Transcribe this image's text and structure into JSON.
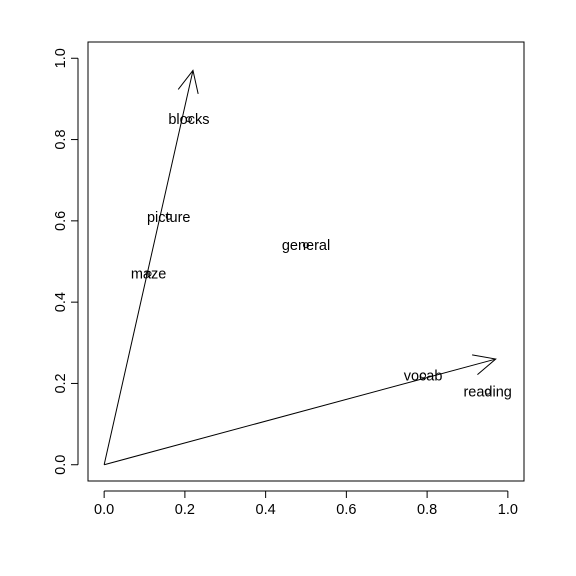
{
  "chart_data": {
    "type": "scatter",
    "title": "",
    "xlabel": "",
    "ylabel": "",
    "xlim": [
      -0.04,
      1.04
    ],
    "ylim": [
      -0.04,
      1.04
    ],
    "grid": false,
    "legend": "none",
    "x_ticks": [
      0.0,
      0.2,
      0.4,
      0.6,
      0.8,
      1.0
    ],
    "y_ticks": [
      0.0,
      0.2,
      0.4,
      0.6,
      0.8,
      1.0
    ],
    "x_tick_labels": [
      "0.0",
      "0.2",
      "0.4",
      "0.6",
      "0.8",
      "1.0"
    ],
    "y_tick_labels": [
      "0.0",
      "0.2",
      "0.4",
      "0.6",
      "0.8",
      "1.0"
    ],
    "points": [
      {
        "label": "blocks",
        "x": 0.21,
        "y": 0.85
      },
      {
        "label": "picture",
        "x": 0.16,
        "y": 0.61
      },
      {
        "label": "maze",
        "x": 0.11,
        "y": 0.47
      },
      {
        "label": "general",
        "x": 0.5,
        "y": 0.54
      },
      {
        "label": "vocab",
        "x": 0.79,
        "y": 0.22
      },
      {
        "label": "reading",
        "x": 0.95,
        "y": 0.18
      }
    ],
    "arrows": [
      {
        "from": [
          0,
          0
        ],
        "to": [
          0.22,
          0.97
        ]
      },
      {
        "from": [
          0,
          0
        ],
        "to": [
          0.97,
          0.26
        ]
      }
    ],
    "colors": {
      "foreground": "#000000",
      "background": "#ffffff"
    }
  }
}
